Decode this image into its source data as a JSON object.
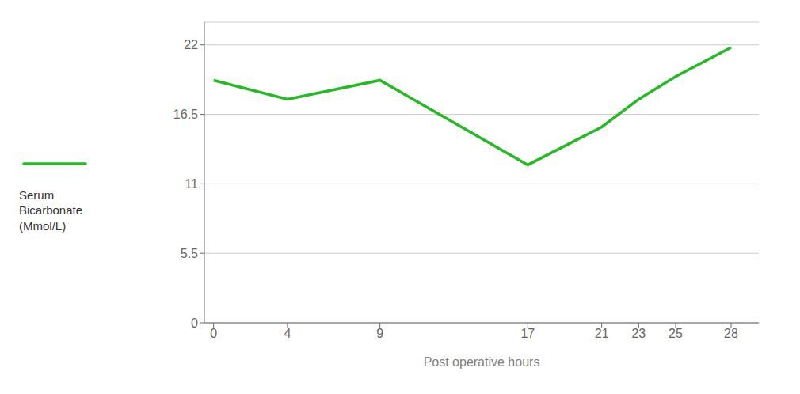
{
  "chart_data": {
    "type": "line",
    "xlabel": "Post operative hours",
    "ylabel": "Serum\nBicarbonate\n(Mmol/L)",
    "x": [
      0,
      4,
      9,
      17,
      21,
      23,
      25,
      28
    ],
    "values": [
      19.2,
      17.7,
      19.2,
      12.5,
      15.5,
      17.7,
      19.5,
      21.8
    ],
    "color": "#22bb22",
    "xlim": [
      -0.5,
      29.5
    ],
    "xticks": [
      0,
      4,
      9,
      17,
      21,
      23,
      25,
      28
    ],
    "ylim": [
      0,
      23.8
    ],
    "yticks": [
      0,
      5.5,
      11,
      16.5,
      22
    ],
    "grid": "y",
    "legend": "left"
  }
}
